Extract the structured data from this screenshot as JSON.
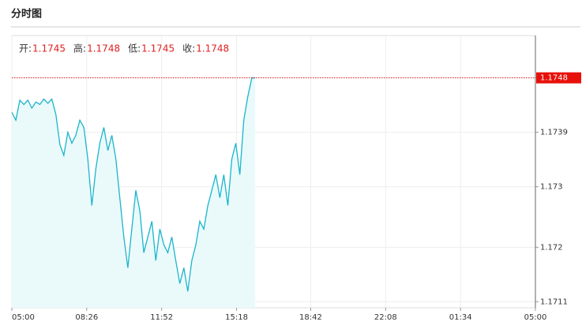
{
  "chart_data": {
    "type": "line",
    "title": "分时图",
    "info": [
      {
        "label": "开:",
        "value": 1.1745
      },
      {
        "label": "高:",
        "value": 1.1748
      },
      {
        "label": "低:",
        "value": 1.1745
      },
      {
        "label": "收:",
        "value": 1.1748
      }
    ],
    "last_price": 1.1748,
    "series": [
      {
        "color": "#1ab5cc",
        "x": [
          0,
          11,
          22,
          33,
          44,
          55,
          66,
          77,
          88,
          99,
          110,
          121,
          132,
          143,
          154,
          165,
          176,
          187,
          198,
          209,
          220,
          231,
          242,
          253,
          264,
          275,
          286,
          297,
          308,
          319,
          330,
          341,
          352,
          363,
          374,
          385,
          396,
          407,
          418,
          429,
          440,
          451,
          462,
          473,
          484,
          495,
          506,
          517,
          528,
          539,
          550,
          561,
          572,
          583,
          594,
          605,
          616,
          627,
          638,
          649,
          660,
          669
        ],
        "values": [
          1.17423,
          1.1741,
          1.17443,
          1.17436,
          1.17443,
          1.1743,
          1.1744,
          1.17436,
          1.17445,
          1.17438,
          1.17445,
          1.1742,
          1.1737,
          1.17352,
          1.1739,
          1.17372,
          1.17385,
          1.1741,
          1.17398,
          1.17346,
          1.17269,
          1.1733,
          1.17372,
          1.17398,
          1.1736,
          1.17385,
          1.17346,
          1.17282,
          1.17217,
          1.17166,
          1.1723,
          1.17294,
          1.1726,
          1.17191,
          1.17217,
          1.17243,
          1.17178,
          1.1723,
          1.17204,
          1.17191,
          1.17217,
          1.17178,
          1.1714,
          1.17166,
          1.17127,
          1.17178,
          1.17204,
          1.17243,
          1.1723,
          1.17269,
          1.17294,
          1.1732,
          1.17282,
          1.1732,
          1.17269,
          1.17346,
          1.17372,
          1.1732,
          1.1741,
          1.17449,
          1.1748,
          1.1748
        ]
      }
    ],
    "xlim": [
      0,
      1440
    ],
    "xticks": [
      {
        "value": 0,
        "label": "05:00"
      },
      {
        "value": 206,
        "label": "08:26"
      },
      {
        "value": 412,
        "label": "11:52"
      },
      {
        "value": 618,
        "label": "15:18"
      },
      {
        "value": 822,
        "label": "18:42"
      },
      {
        "value": 1028,
        "label": "22:08"
      },
      {
        "value": 1234,
        "label": "01:34"
      },
      {
        "value": 1440,
        "label": "05:00"
      }
    ],
    "ylim": [
      1.171,
      1.1755
    ],
    "yticks": [
      1.1711,
      1.172,
      1.173,
      1.1739,
      1.1748
    ],
    "grid": true
  }
}
